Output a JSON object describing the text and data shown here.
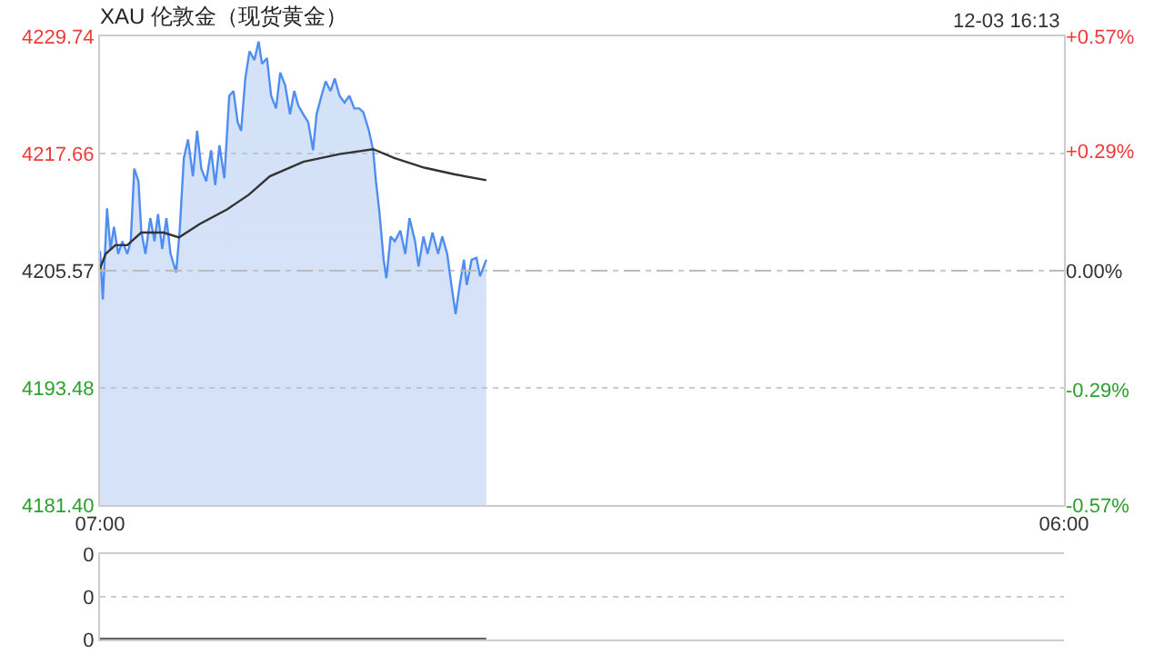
{
  "chart_data": [
    {
      "type": "area",
      "title": "XAU 伦敦金（现货黄金）",
      "annotations": [
        "12-03 16:13"
      ],
      "series": [
        {
          "color": "#4f8ef0",
          "x": [
            "--12-03T07:00",
            "--12-03T07:04",
            "--12-03T07:10",
            "--12-03T07:15",
            "--12-03T07:20",
            "--12-03T07:26",
            "--12-03T07:32",
            "--12-03T07:39",
            "--12-03T07:44",
            "--12-03T07:49",
            "--12-03T07:55",
            "--12-03T07:59",
            "--12-03T08:05",
            "--12-03T08:12",
            "--12-03T08:18",
            "--12-03T08:23",
            "--12-03T08:29",
            "--12-03T08:35",
            "--12-03T08:41",
            "--12-03T08:49",
            "--12-03T08:54",
            "--12-03T09:00",
            "--12-03T09:06",
            "--12-03T09:13",
            "--12-03T09:19",
            "--12-03T09:25",
            "--12-03T09:32",
            "--12-03T09:39",
            "--12-03T09:45",
            "--12-03T09:51",
            "--12-03T09:58",
            "--12-03T10:05",
            "--12-03T10:11",
            "--12-03T10:17",
            "--12-03T10:22",
            "--12-03T10:28",
            "--12-03T10:34",
            "--12-03T10:41",
            "--12-03T10:47",
            "--12-03T10:52",
            "--12-03T10:59",
            "--12-03T11:05",
            "--12-03T11:12",
            "--12-03T11:18",
            "--12-03T11:25",
            "--12-03T11:32",
            "--12-03T11:38",
            "--12-03T11:44",
            "--12-03T11:51",
            "--12-03T11:58",
            "--12-03T12:05",
            "--12-03T12:10",
            "--12-03T12:17",
            "--12-03T12:23",
            "--12-03T12:30",
            "--12-03T12:36",
            "--12-03T12:43",
            "--12-03T12:50",
            "--12-03T12:57",
            "--12-03T13:04",
            "--12-03T13:11",
            "--12-03T13:17",
            "--12-03T13:25",
            "--12-03T13:31",
            "--12-03T13:35",
            "--12-03T13:40",
            "--12-03T13:46",
            "--12-03T13:50",
            "--12-03T13:56",
            "--12-03T14:02",
            "--12-03T14:10",
            "--12-03T14:17",
            "--12-03T14:23",
            "--12-03T14:31",
            "--12-03T14:36",
            "--12-03T14:43",
            "--12-03T14:49",
            "--12-03T14:56",
            "--12-03T15:04",
            "--12-03T15:10",
            "--12-03T15:17",
            "--12-03T15:23",
            "--12-03T15:29",
            "--12-03T15:35",
            "--12-03T15:41",
            "--12-03T15:45",
            "--12-03T15:52",
            "--12-03T15:59",
            "--12-03T16:04",
            "--12-03T16:13"
          ],
          "values": [
            4207.6,
            4202.6,
            4212.0,
            4207.8,
            4210.1,
            4207.3,
            4208.6,
            4207.3,
            4208.6,
            4216.1,
            4214.8,
            4209.7,
            4207.3,
            4211.0,
            4208.6,
            4211.4,
            4207.8,
            4211.0,
            4207.3,
            4205.4,
            4209.7,
            4217.2,
            4219.1,
            4215.3,
            4220.0,
            4216.1,
            4214.8,
            4218.0,
            4214.4,
            4218.5,
            4215.1,
            4223.6,
            4224.1,
            4220.9,
            4220.0,
            4225.4,
            4228.2,
            4227.3,
            4229.2,
            4226.9,
            4227.5,
            4223.6,
            4222.3,
            4226.0,
            4224.7,
            4221.7,
            4224.1,
            4222.6,
            4221.7,
            4220.9,
            4218.0,
            4221.7,
            4223.6,
            4225.1,
            4224.1,
            4225.4,
            4223.6,
            4222.9,
            4223.6,
            4222.3,
            4222.3,
            4221.9,
            4220.0,
            4218.0,
            4214.8,
            4211.6,
            4206.7,
            4204.8,
            4209.1,
            4208.6,
            4209.7,
            4207.3,
            4211.0,
            4208.6,
            4206.0,
            4209.1,
            4207.3,
            4209.5,
            4207.3,
            4209.1,
            4207.3,
            4204.1,
            4201.1,
            4204.1,
            4206.7,
            4204.1,
            4206.7,
            4206.9,
            4205.0,
            4206.7
          ]
        },
        {
          "type": "line",
          "color": "#333333",
          "x": [
            "--12-03T07:00",
            "--12-03T07:08",
            "--12-03T07:22",
            "--12-03T07:39",
            "--12-03T07:59",
            "--12-03T08:31",
            "--12-03T08:53",
            "--12-03T09:23",
            "--12-03T10:02",
            "--12-03T10:33",
            "--12-03T11:03",
            "--12-03T11:51",
            "--12-03T12:43",
            "--12-03T13:31",
            "--12-03T14:01",
            "--12-03T14:44",
            "--12-03T15:28",
            "--12-03T16:13"
          ],
          "values": [
            4205.8,
            4207.3,
            4208.2,
            4208.2,
            4209.5,
            4209.5,
            4209.0,
            4210.4,
            4211.9,
            4213.4,
            4215.3,
            4216.8,
            4217.6,
            4218.1,
            4217.2,
            4216.2,
            4215.5,
            4214.9
          ]
        }
      ],
      "xlim": [
        "--12-03T07:00",
        "--12-04T06:00"
      ],
      "xticks": [
        {
          "value": "--12-03T07:00",
          "label": "07:00"
        },
        {
          "value": "--12-04T06:00",
          "label": "06:00"
        }
      ],
      "ylim": [
        4181.4,
        4229.74
      ],
      "yticks": [
        {
          "value": 4181.4,
          "label": "4181.40"
        },
        4193.48,
        4205.57,
        4217.66,
        4229.74
      ],
      "y2lim": [
        -0.57,
        0.57
      ],
      "y2ticks": [
        {
          "value": -0.57,
          "label": "-0.57%"
        },
        {
          "value": -0.29,
          "label": "-0.29%"
        },
        {
          "value": 0,
          "label": "0.00%"
        },
        {
          "value": 0.29,
          "label": "+0.29%"
        },
        {
          "value": 0.57,
          "label": "+0.57%"
        }
      ],
      "ref_lines": [
        {
          "axis": "y",
          "value": 4205.57,
          "line_style": "dashed",
          "color": "#bbbbbb"
        }
      ],
      "grid": "y",
      "marker": "none"
    },
    {
      "type": "line",
      "series": [
        {
          "color": "#666666",
          "x": [
            "--12-03T07:00",
            "--12-03T16:13"
          ],
          "values": [
            0,
            0
          ]
        }
      ],
      "xlim": [
        "--12-03T07:00",
        "--12-04T06:00"
      ],
      "ylim": [
        0,
        0.4
      ],
      "yticks": [
        {
          "value": 0,
          "label": "0"
        },
        {
          "value": 0.2,
          "label": "0"
        },
        {
          "value": 0.4,
          "label": "0"
        }
      ],
      "tick_labels": "y",
      "grid": "y",
      "marker": "none"
    }
  ]
}
